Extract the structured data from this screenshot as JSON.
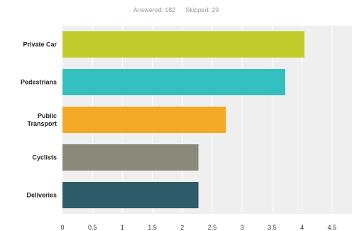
{
  "summary": {
    "answered_label": "Answered:",
    "answered_value": "182",
    "skipped_label": "Skipped:",
    "skipped_value": "29"
  },
  "chart_data": {
    "type": "bar",
    "orientation": "horizontal",
    "categories": [
      [
        "Private Car"
      ],
      [
        "Pedestrians"
      ],
      [
        "Public",
        "Transport"
      ],
      [
        "Cyclists"
      ],
      [
        "Deliveries"
      ]
    ],
    "values": [
      4.04,
      3.72,
      2.73,
      2.27,
      2.27
    ],
    "colors": [
      "#c3cc2d",
      "#34bfc0",
      "#f4a924",
      "#8a8a7a",
      "#2f5b6b"
    ],
    "xlim": [
      0,
      4.5
    ],
    "xticks": [
      "0",
      "0.5",
      "1",
      "1.5",
      "2",
      "2.5",
      "3",
      "3.5",
      "4",
      "4.5"
    ],
    "grid": true,
    "title": "",
    "xlabel": "",
    "ylabel": ""
  }
}
